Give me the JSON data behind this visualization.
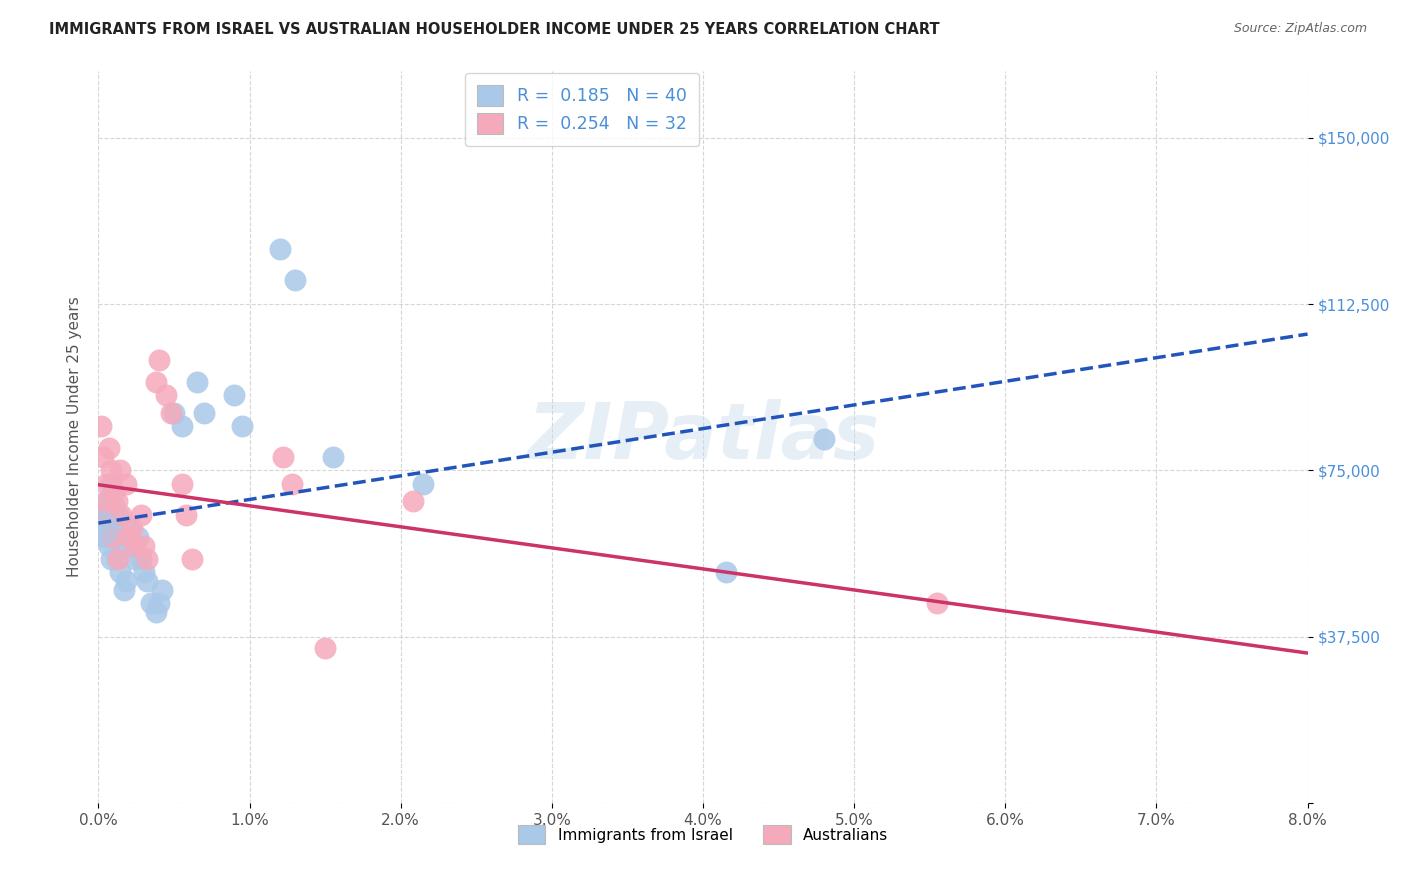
{
  "title": "IMMIGRANTS FROM ISRAEL VS AUSTRALIAN HOUSEHOLDER INCOME UNDER 25 YEARS CORRELATION CHART",
  "source": "Source: ZipAtlas.com",
  "ylabel": "Householder Income Under 25 years",
  "legend1_R": "0.185",
  "legend1_N": "40",
  "legend2_R": "0.254",
  "legend2_N": "32",
  "legend_label1": "Immigrants from Israel",
  "legend_label2": "Australians",
  "blue_color": "#aac8e8",
  "pink_color": "#f5aabb",
  "blue_line_color": "#2255bb",
  "pink_line_color": "#cc3366",
  "watermark": "ZIPatlas",
  "background_color": "#ffffff",
  "grid_color": "#cccccc",
  "blue_points": [
    [
      0.02,
      62000
    ],
    [
      0.03,
      65000
    ],
    [
      0.04,
      60000
    ],
    [
      0.05,
      68000
    ],
    [
      0.06,
      64000
    ],
    [
      0.07,
      58000
    ],
    [
      0.08,
      72000
    ],
    [
      0.08,
      55000
    ],
    [
      0.09,
      62000
    ],
    [
      0.1,
      67000
    ],
    [
      0.11,
      60000
    ],
    [
      0.12,
      55000
    ],
    [
      0.13,
      65000
    ],
    [
      0.14,
      52000
    ],
    [
      0.15,
      58000
    ],
    [
      0.17,
      48000
    ],
    [
      0.18,
      50000
    ],
    [
      0.2,
      62000
    ],
    [
      0.22,
      58000
    ],
    [
      0.24,
      55000
    ],
    [
      0.26,
      60000
    ],
    [
      0.28,
      55000
    ],
    [
      0.3,
      52000
    ],
    [
      0.32,
      50000
    ],
    [
      0.35,
      45000
    ],
    [
      0.38,
      43000
    ],
    [
      0.4,
      45000
    ],
    [
      0.42,
      48000
    ],
    [
      0.5,
      88000
    ],
    [
      0.55,
      85000
    ],
    [
      0.65,
      95000
    ],
    [
      0.7,
      88000
    ],
    [
      0.9,
      92000
    ],
    [
      0.95,
      85000
    ],
    [
      1.2,
      125000
    ],
    [
      1.3,
      118000
    ],
    [
      1.55,
      78000
    ],
    [
      2.15,
      72000
    ],
    [
      4.15,
      52000
    ],
    [
      4.8,
      82000
    ]
  ],
  "pink_points": [
    [
      0.02,
      85000
    ],
    [
      0.03,
      78000
    ],
    [
      0.04,
      65000
    ],
    [
      0.05,
      72000
    ],
    [
      0.06,
      68000
    ],
    [
      0.07,
      80000
    ],
    [
      0.08,
      75000
    ],
    [
      0.09,
      60000
    ],
    [
      0.1,
      70000
    ],
    [
      0.12,
      68000
    ],
    [
      0.13,
      55000
    ],
    [
      0.14,
      75000
    ],
    [
      0.15,
      65000
    ],
    [
      0.18,
      72000
    ],
    [
      0.2,
      60000
    ],
    [
      0.22,
      62000
    ],
    [
      0.24,
      58000
    ],
    [
      0.28,
      65000
    ],
    [
      0.3,
      58000
    ],
    [
      0.32,
      55000
    ],
    [
      0.38,
      95000
    ],
    [
      0.4,
      100000
    ],
    [
      0.45,
      92000
    ],
    [
      0.48,
      88000
    ],
    [
      0.55,
      72000
    ],
    [
      0.58,
      65000
    ],
    [
      0.62,
      55000
    ],
    [
      1.22,
      78000
    ],
    [
      1.28,
      72000
    ],
    [
      1.5,
      35000
    ],
    [
      2.08,
      68000
    ],
    [
      5.55,
      45000
    ]
  ],
  "xlim": [
    0.0,
    8.0
  ],
  "ylim": [
    0,
    165000
  ],
  "ytick_vals": [
    0,
    37500,
    75000,
    112500,
    150000
  ],
  "ytick_labels": [
    "",
    "$37,500",
    "$75,000",
    "$112,500",
    "$150,000"
  ],
  "xtick_vals": [
    0,
    1,
    2,
    3,
    4,
    5,
    6,
    7,
    8
  ],
  "xtick_labels": [
    "0.0%",
    "1.0%",
    "2.0%",
    "3.0%",
    "4.0%",
    "5.0%",
    "6.0%",
    "7.0%",
    "8.0%"
  ]
}
